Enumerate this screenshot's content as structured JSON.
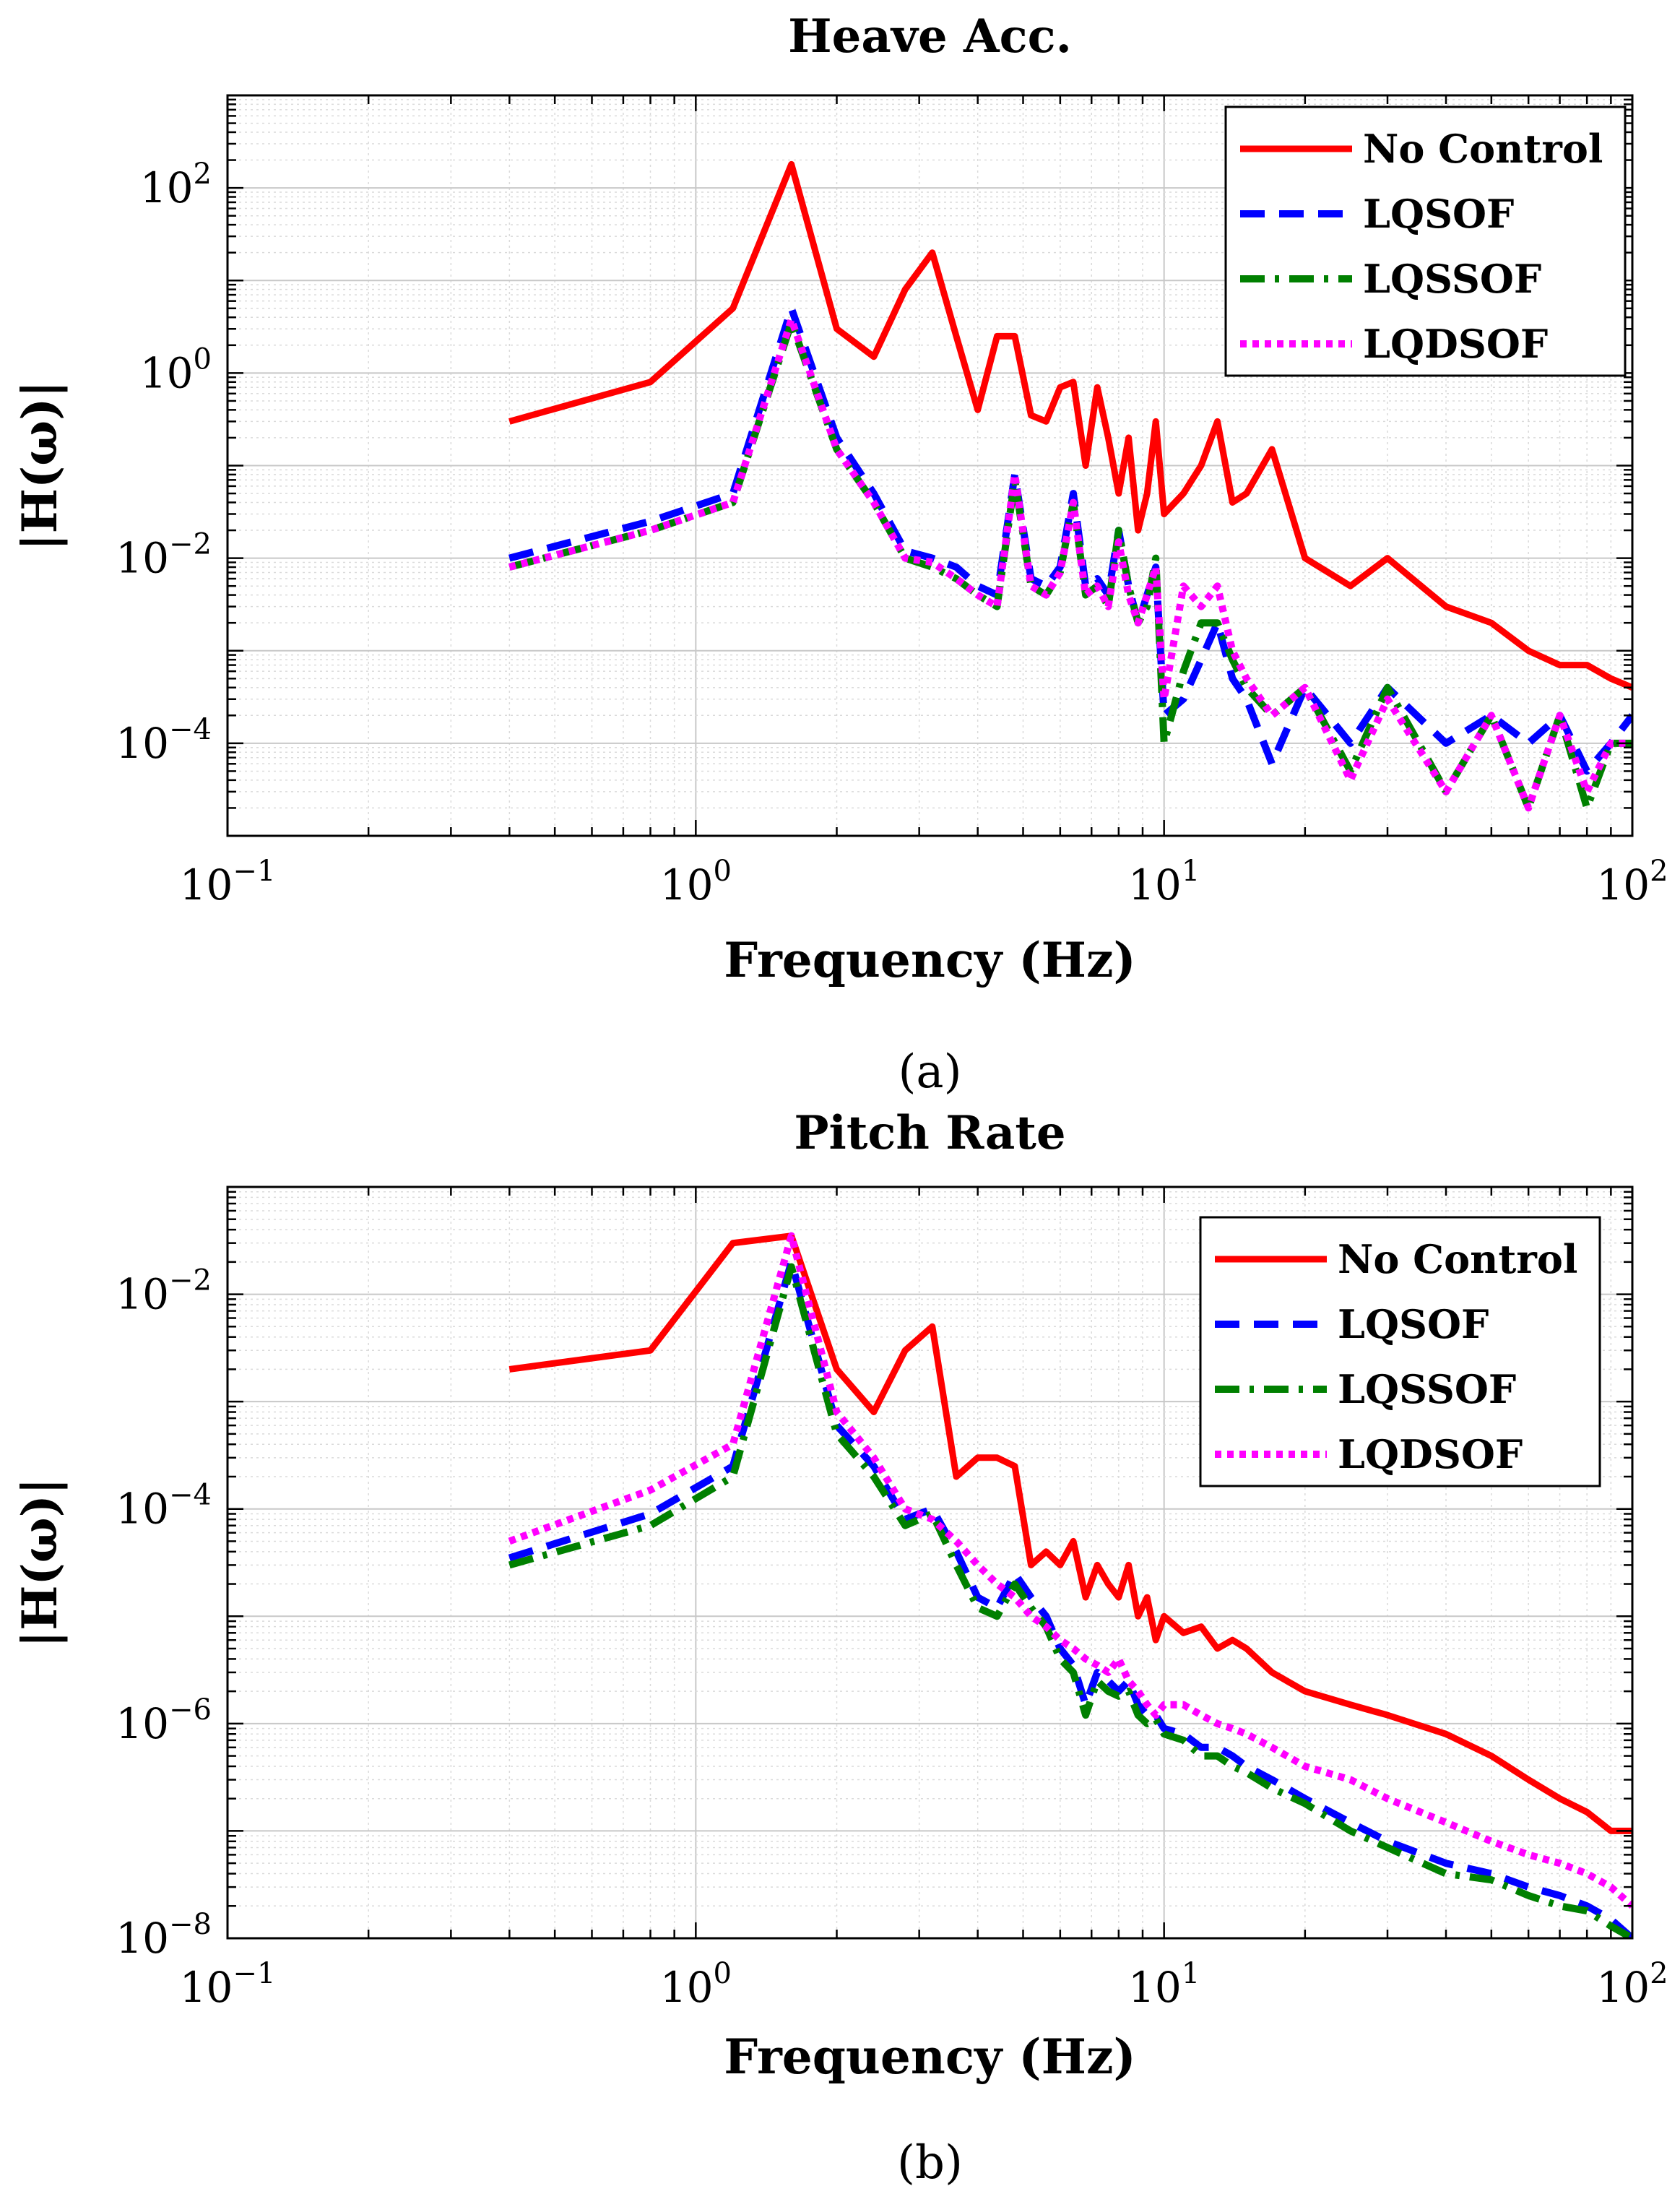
{
  "colors": {
    "no_control": "#ff0000",
    "lqsof": "#0000ff",
    "lqssof": "#008000",
    "lqdsof": "#ff00ff"
  },
  "chart_data": [
    {
      "type": "line",
      "scale": "loglog",
      "subfigure_label": "(a)",
      "title": "Heave Acc.",
      "xlabel": "Frequency (Hz)",
      "ylabel": "|H(ω)|",
      "xlim": [
        0.1,
        100
      ],
      "ylim": [
        1e-05,
        1000
      ],
      "xticks": [
        {
          "value": 0.1,
          "base": "10",
          "exp": "−1"
        },
        {
          "value": 1,
          "base": "10",
          "exp": "0"
        },
        {
          "value": 10,
          "base": "10",
          "exp": "1"
        },
        {
          "value": 100,
          "base": "10",
          "exp": "2"
        }
      ],
      "yticks": [
        {
          "value": 0.0001,
          "base": "10",
          "exp": "−4"
        },
        {
          "value": 0.01,
          "base": "10",
          "exp": "−2"
        },
        {
          "value": 1,
          "base": "10",
          "exp": "0"
        },
        {
          "value": 100,
          "base": "10",
          "exp": "2"
        }
      ],
      "grid": true,
      "legend_position": "top-right",
      "series": [
        {
          "name": "No Control",
          "key": "no_control",
          "style": "solid",
          "x": [
            0.4,
            0.8,
            1.2,
            1.6,
            2.0,
            2.4,
            2.8,
            3.2,
            3.6,
            4.0,
            4.4,
            4.8,
            5.2,
            5.6,
            6.0,
            6.4,
            6.8,
            7.2,
            7.6,
            8.0,
            8.4,
            8.8,
            9.2,
            9.6,
            10.0,
            11.0,
            12.0,
            13.0,
            14.0,
            15.0,
            17.0,
            20.0,
            25.0,
            30.0,
            40.0,
            50.0,
            60.0,
            70.0,
            80.0,
            90.0,
            100.0
          ],
          "y": [
            0.3,
            0.8,
            5,
            180,
            3,
            1.5,
            8,
            20,
            2.5,
            0.4,
            2.5,
            2.5,
            0.35,
            0.3,
            0.7,
            0.8,
            0.1,
            0.7,
            0.2,
            0.05,
            0.2,
            0.02,
            0.05,
            0.3,
            0.03,
            0.05,
            0.1,
            0.3,
            0.04,
            0.05,
            0.15,
            0.01,
            0.005,
            0.01,
            0.003,
            0.002,
            0.001,
            0.0007,
            0.0007,
            0.0005,
            0.0004
          ]
        },
        {
          "name": "LQSOF",
          "key": "lqsof",
          "style": "dashed",
          "x": [
            0.4,
            0.8,
            1.2,
            1.6,
            2.0,
            2.4,
            2.8,
            3.2,
            3.6,
            4.0,
            4.4,
            4.8,
            5.2,
            5.6,
            6.0,
            6.4,
            6.8,
            7.2,
            7.6,
            8.0,
            8.4,
            8.8,
            9.2,
            9.6,
            10.0,
            11.0,
            12.0,
            13.0,
            14.0,
            15.0,
            17.0,
            20.0,
            25.0,
            30.0,
            40.0,
            50.0,
            60.0,
            70.0,
            80.0,
            90.0,
            100.0
          ],
          "y": [
            0.01,
            0.025,
            0.05,
            5,
            0.2,
            0.05,
            0.012,
            0.01,
            0.008,
            0.005,
            0.004,
            0.08,
            0.006,
            0.005,
            0.008,
            0.05,
            0.005,
            0.006,
            0.004,
            0.02,
            0.005,
            0.002,
            0.004,
            0.008,
            0.0002,
            0.0003,
            0.0008,
            0.002,
            0.0005,
            0.0003,
            6e-05,
            0.0004,
            0.0001,
            0.0004,
            0.0001,
            0.0002,
            0.0001,
            0.0002,
            5e-05,
            0.0001,
            0.0002
          ]
        },
        {
          "name": "LQSSOF",
          "key": "lqssof",
          "style": "dashdot",
          "x": [
            0.4,
            0.8,
            1.2,
            1.6,
            2.0,
            2.4,
            2.8,
            3.2,
            3.6,
            4.0,
            4.4,
            4.8,
            5.2,
            5.6,
            6.0,
            6.4,
            6.8,
            7.2,
            7.6,
            8.0,
            8.4,
            8.8,
            9.2,
            9.6,
            10.0,
            11.0,
            12.0,
            13.0,
            14.0,
            15.0,
            17.0,
            20.0,
            25.0,
            30.0,
            40.0,
            50.0,
            60.0,
            70.0,
            80.0,
            90.0,
            100.0
          ],
          "y": [
            0.008,
            0.02,
            0.04,
            3.5,
            0.15,
            0.04,
            0.01,
            0.008,
            0.006,
            0.004,
            0.003,
            0.07,
            0.005,
            0.004,
            0.007,
            0.04,
            0.004,
            0.005,
            0.003,
            0.02,
            0.005,
            0.002,
            0.003,
            0.01,
            0.0001,
            0.0006,
            0.002,
            0.002,
            0.0008,
            0.0004,
            0.0002,
            0.0004,
            5e-05,
            0.0004,
            3e-05,
            0.0002,
            2e-05,
            0.0002,
            2e-05,
            0.0001,
            0.0001
          ]
        },
        {
          "name": "LQDSOF",
          "key": "lqdsof",
          "style": "dotted",
          "x": [
            0.4,
            0.8,
            1.2,
            1.6,
            2.0,
            2.4,
            2.8,
            3.2,
            3.6,
            4.0,
            4.4,
            4.8,
            5.2,
            5.6,
            6.0,
            6.4,
            6.8,
            7.2,
            7.6,
            8.0,
            8.4,
            8.8,
            9.2,
            9.6,
            10.0,
            11.0,
            12.0,
            13.0,
            14.0,
            15.0,
            17.0,
            20.0,
            25.0,
            30.0,
            40.0,
            50.0,
            60.0,
            70.0,
            80.0,
            90.0,
            100.0
          ],
          "y": [
            0.008,
            0.02,
            0.04,
            3.8,
            0.15,
            0.04,
            0.01,
            0.009,
            0.006,
            0.004,
            0.003,
            0.08,
            0.005,
            0.004,
            0.007,
            0.04,
            0.004,
            0.005,
            0.003,
            0.015,
            0.004,
            0.002,
            0.004,
            0.008,
            0.0003,
            0.005,
            0.003,
            0.005,
            0.001,
            0.0005,
            0.0002,
            0.0004,
            4e-05,
            0.0003,
            3e-05,
            0.0002,
            2e-05,
            0.0002,
            3e-05,
            0.0001,
            0.0001
          ]
        }
      ]
    },
    {
      "type": "line",
      "scale": "loglog",
      "subfigure_label": "(b)",
      "title": "Pitch Rate",
      "xlabel": "Frequency (Hz)",
      "ylabel": "|H(ω)|",
      "xlim": [
        0.1,
        100
      ],
      "ylim": [
        1e-08,
        0.1
      ],
      "xticks": [
        {
          "value": 0.1,
          "base": "10",
          "exp": "−1"
        },
        {
          "value": 1,
          "base": "10",
          "exp": "0"
        },
        {
          "value": 10,
          "base": "10",
          "exp": "1"
        },
        {
          "value": 100,
          "base": "10",
          "exp": "2"
        }
      ],
      "yticks": [
        {
          "value": 1e-08,
          "base": "10",
          "exp": "−8"
        },
        {
          "value": 1e-06,
          "base": "10",
          "exp": "−6"
        },
        {
          "value": 0.0001,
          "base": "10",
          "exp": "−4"
        },
        {
          "value": 0.01,
          "base": "10",
          "exp": "−2"
        }
      ],
      "grid": true,
      "legend_position": "top-right",
      "series": [
        {
          "name": "No Control",
          "key": "no_control",
          "style": "solid",
          "x": [
            0.4,
            0.8,
            1.2,
            1.6,
            2.0,
            2.4,
            2.8,
            3.2,
            3.6,
            4.0,
            4.4,
            4.8,
            5.2,
            5.6,
            6.0,
            6.4,
            6.8,
            7.2,
            7.6,
            8.0,
            8.4,
            8.8,
            9.2,
            9.6,
            10.0,
            11.0,
            12.0,
            13.0,
            14.0,
            15.0,
            17.0,
            20.0,
            25.0,
            30.0,
            40.0,
            50.0,
            60.0,
            70.0,
            80.0,
            90.0,
            100.0
          ],
          "y": [
            0.002,
            0.003,
            0.03,
            0.035,
            0.002,
            0.0008,
            0.003,
            0.005,
            0.0002,
            0.0003,
            0.0003,
            0.00025,
            3e-05,
            4e-05,
            3e-05,
            5e-05,
            1.5e-05,
            3e-05,
            2e-05,
            1.5e-05,
            3e-05,
            1e-05,
            1.5e-05,
            6e-06,
            1e-05,
            7e-06,
            8e-06,
            5e-06,
            6e-06,
            5e-06,
            3e-06,
            2e-06,
            1.5e-06,
            1.2e-06,
            8e-07,
            5e-07,
            3e-07,
            2e-07,
            1.5e-07,
            1e-07,
            1e-07
          ]
        },
        {
          "name": "LQSOF",
          "key": "lqsof",
          "style": "dashed",
          "x": [
            0.4,
            0.8,
            1.2,
            1.6,
            2.0,
            2.4,
            2.8,
            3.2,
            3.6,
            4.0,
            4.4,
            4.8,
            5.2,
            5.6,
            6.0,
            6.4,
            6.8,
            7.2,
            7.6,
            8.0,
            8.4,
            8.8,
            9.2,
            9.6,
            10.0,
            11.0,
            12.0,
            13.0,
            14.0,
            15.0,
            17.0,
            20.0,
            25.0,
            30.0,
            40.0,
            50.0,
            60.0,
            70.0,
            80.0,
            90.0,
            100.0
          ],
          "y": [
            3.5e-05,
            9e-05,
            0.00025,
            0.02,
            0.0006,
            0.00025,
            8e-05,
            0.0001,
            4e-05,
            1.5e-05,
            1.2e-05,
            2.5e-05,
            1.5e-05,
            1e-05,
            5e-06,
            3.5e-06,
            1.5e-06,
            3e-06,
            2.5e-06,
            2e-06,
            2.5e-06,
            1.5e-06,
            1.2e-06,
            1.2e-06,
            9e-07,
            8e-07,
            6e-07,
            6e-07,
            5e-07,
            4e-07,
            3e-07,
            2e-07,
            1.2e-07,
            8e-08,
            5e-08,
            4e-08,
            3e-08,
            2.5e-08,
            2e-08,
            1.5e-08,
            1e-08
          ]
        },
        {
          "name": "LQSSOF",
          "key": "lqssof",
          "style": "dashdot",
          "x": [
            0.4,
            0.8,
            1.2,
            1.6,
            2.0,
            2.4,
            2.8,
            3.2,
            3.6,
            4.0,
            4.4,
            4.8,
            5.2,
            5.6,
            6.0,
            6.4,
            6.8,
            7.2,
            7.6,
            8.0,
            8.4,
            8.8,
            9.2,
            9.6,
            10.0,
            11.0,
            12.0,
            13.0,
            14.0,
            15.0,
            17.0,
            20.0,
            25.0,
            30.0,
            40.0,
            50.0,
            60.0,
            70.0,
            80.0,
            90.0,
            100.0
          ],
          "y": [
            3e-05,
            7e-05,
            0.0002,
            0.018,
            0.0005,
            0.0002,
            7e-05,
            9e-05,
            3e-05,
            1.2e-05,
            1e-05,
            2e-05,
            1.2e-05,
            8e-06,
            4e-06,
            3e-06,
            1.2e-06,
            2.5e-06,
            2e-06,
            1.8e-06,
            2e-06,
            1.2e-06,
            1e-06,
            1.1e-06,
            8e-07,
            7e-07,
            5e-07,
            5e-07,
            4e-07,
            3.5e-07,
            2.5e-07,
            1.8e-07,
            1e-07,
            7e-08,
            4e-08,
            3.5e-08,
            2.5e-08,
            2e-08,
            1.8e-08,
            1.3e-08,
            1e-08
          ]
        },
        {
          "name": "LQDSOF",
          "key": "lqdsof",
          "style": "dotted",
          "x": [
            0.4,
            0.8,
            1.2,
            1.6,
            2.0,
            2.4,
            2.8,
            3.2,
            3.6,
            4.0,
            4.4,
            4.8,
            5.2,
            5.6,
            6.0,
            6.4,
            6.8,
            7.2,
            7.6,
            8.0,
            8.4,
            8.8,
            9.2,
            9.6,
            10.0,
            11.0,
            12.0,
            13.0,
            14.0,
            15.0,
            17.0,
            20.0,
            25.0,
            30.0,
            40.0,
            50.0,
            60.0,
            70.0,
            80.0,
            90.0,
            100.0
          ],
          "y": [
            5e-05,
            0.00015,
            0.0004,
            0.035,
            0.0008,
            0.0003,
            0.0001,
            8e-05,
            5e-05,
            3e-05,
            2e-05,
            1.5e-05,
            1e-05,
            8e-06,
            6e-06,
            5e-06,
            4e-06,
            3.5e-06,
            3e-06,
            4e-06,
            2.5e-06,
            2e-06,
            1.5e-06,
            1.2e-06,
            1.5e-06,
            1.5e-06,
            1.2e-06,
            1e-06,
            9e-07,
            8e-07,
            6e-07,
            4e-07,
            3e-07,
            2e-07,
            1.2e-07,
            8e-08,
            6e-08,
            5e-08,
            4e-08,
            3e-08,
            2e-08
          ]
        }
      ]
    }
  ]
}
